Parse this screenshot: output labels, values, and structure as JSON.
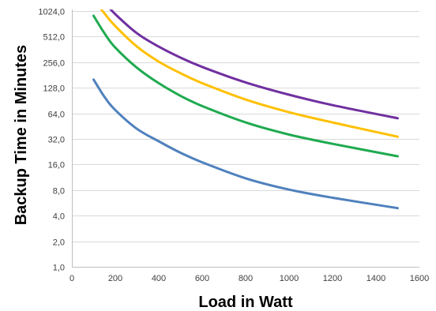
{
  "chart_data": {
    "type": "line",
    "title": "",
    "xlabel": "Load in Watt",
    "ylabel": "Backup Time in Minutes",
    "xlim": [
      0,
      1600
    ],
    "ylim": [
      1,
      1024
    ],
    "y_scale": "log2",
    "grid": "horizontal",
    "x_ticks": [
      0,
      200,
      400,
      600,
      800,
      1000,
      1200,
      1400,
      1600
    ],
    "x_tick_labels": [
      "0",
      "200",
      "400",
      "600",
      "800",
      "1000",
      "1200",
      "1400",
      "1600"
    ],
    "y_ticks": [
      1,
      2,
      4,
      8,
      16,
      32,
      64,
      128,
      256,
      512,
      1024
    ],
    "y_tick_labels": [
      "1,0",
      "2,0",
      "4,0",
      "8,0",
      "16,0",
      "32,0",
      "64,0",
      "128,0",
      "256,0",
      "512,0",
      "1024,0"
    ],
    "series": [
      {
        "color": "#4f81bd",
        "x": [
          100,
          150,
          200,
          300,
          400,
          500,
          600,
          800,
          1000,
          1200,
          1500
        ],
        "y": [
          160,
          100,
          70,
          42,
          30,
          22,
          17,
          11,
          8.1,
          6.5,
          4.9
        ]
      },
      {
        "color": "#1faa50",
        "x": [
          100,
          150,
          200,
          300,
          400,
          500,
          600,
          800,
          1000,
          1200,
          1500
        ],
        "y": [
          900,
          560,
          380,
          220,
          145,
          103,
          78,
          50,
          36,
          28,
          20
        ]
      },
      {
        "color": "#ffc000",
        "x": [
          110,
          150,
          200,
          300,
          400,
          500,
          600,
          800,
          1000,
          1200,
          1500
        ],
        "y": [
          1300,
          960,
          680,
          390,
          260,
          190,
          145,
          93,
          66,
          50,
          34
        ]
      },
      {
        "color": "#7030a0",
        "x": [
          150,
          200,
          300,
          400,
          500,
          600,
          800,
          1000,
          1200,
          1500
        ],
        "y": [
          1300,
          940,
          560,
          390,
          290,
          225,
          148,
          106,
          80,
          56
        ]
      }
    ]
  }
}
